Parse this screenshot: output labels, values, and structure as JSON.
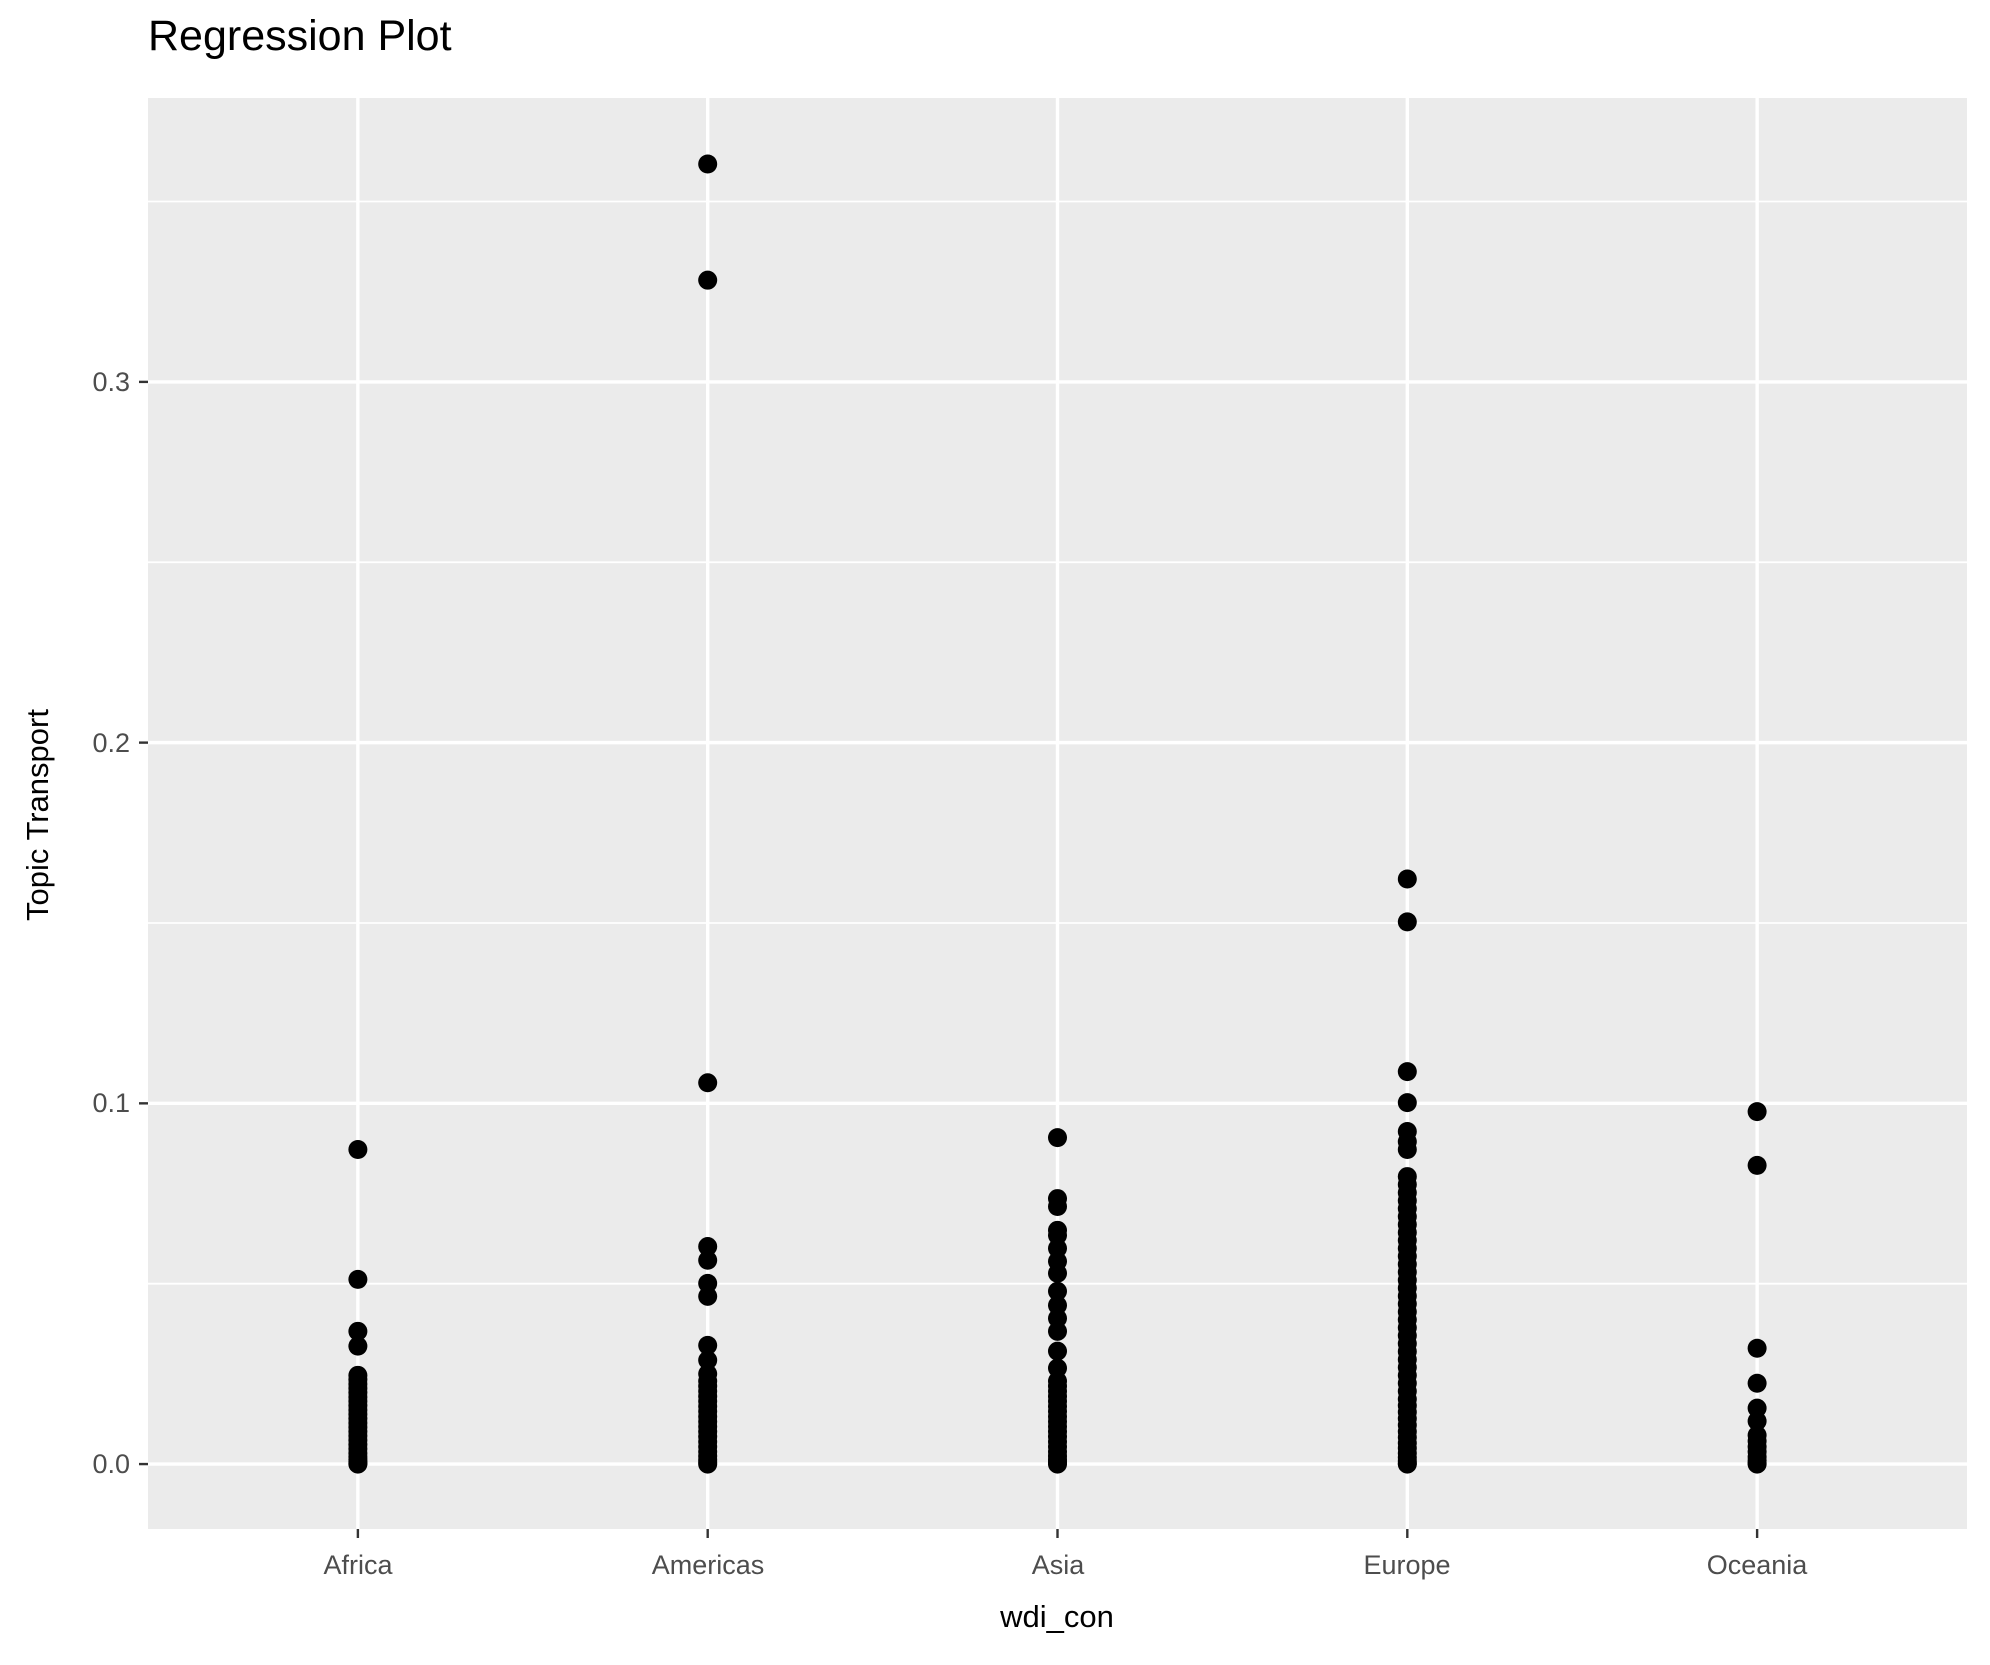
{
  "chart_data": {
    "type": "scatter",
    "title": "Regression Plot",
    "xlabel": "wdi_con",
    "ylabel": "Topic Transport",
    "categories": [
      "Africa",
      "Americas",
      "Asia",
      "Europe",
      "Oceania"
    ],
    "y_ticks": [
      {
        "value": 0.0,
        "label": "0.0"
      },
      {
        "value": 0.1,
        "label": "0.1"
      },
      {
        "value": 0.2,
        "label": "0.2"
      },
      {
        "value": 0.3,
        "label": "0.3"
      }
    ],
    "y_minor_ticks": [
      0.05,
      0.15,
      0.25,
      0.35
    ],
    "ylim": [
      -0.018,
      0.3787
    ],
    "x_units_range": [
      0.4,
      5.6
    ],
    "grid": "horizontal major+minor white lines, vertical major white lines at categories",
    "legend": "none",
    "point_color": "#000000",
    "panel_background": "#EBEBEB",
    "grid_color": "#FFFFFF",
    "tick_mark_color": "#333333",
    "tick_label_color": "#4D4D4D",
    "series": [
      {
        "name": "Africa",
        "values": [
          0.0872,
          0.0512,
          0.0368,
          0.0327,
          0.0246,
          0.0234,
          0.0222,
          0.021,
          0.0198,
          0.0186,
          0.0174,
          0.0162,
          0.015,
          0.0138,
          0.0126,
          0.0114,
          0.0102,
          0.009,
          0.0078,
          0.0066,
          0.0054,
          0.0042,
          0.003,
          0.002,
          0.0012,
          0.0006,
          0.0002,
          0.0
        ]
      },
      {
        "name": "Americas",
        "values": [
          0.3604,
          0.3282,
          0.1057,
          0.0603,
          0.0565,
          0.0501,
          0.0465,
          0.0329,
          0.0288,
          0.025,
          0.023,
          0.0216,
          0.0202,
          0.0188,
          0.0174,
          0.016,
          0.0146,
          0.0132,
          0.0118,
          0.0104,
          0.009,
          0.0076,
          0.0062,
          0.0048,
          0.0034,
          0.0022,
          0.0012,
          0.0005,
          0.0
        ]
      },
      {
        "name": "Asia",
        "values": [
          0.0905,
          0.0736,
          0.0714,
          0.0648,
          0.0634,
          0.0598,
          0.0562,
          0.0529,
          0.0479,
          0.044,
          0.0404,
          0.0368,
          0.0313,
          0.0266,
          0.023,
          0.0216,
          0.0202,
          0.0188,
          0.0174,
          0.016,
          0.0146,
          0.0132,
          0.0118,
          0.0104,
          0.009,
          0.0076,
          0.0062,
          0.0048,
          0.0034,
          0.0022,
          0.0012,
          0.0005,
          0.0
        ]
      },
      {
        "name": "Europe",
        "values": [
          0.1622,
          0.1503,
          0.1088,
          0.1002,
          0.0922,
          0.0894,
          0.0872,
          0.0797,
          0.0775,
          0.0752,
          0.073,
          0.0708,
          0.0686,
          0.0664,
          0.0642,
          0.062,
          0.0598,
          0.0576,
          0.0554,
          0.0532,
          0.051,
          0.0488,
          0.0466,
          0.0444,
          0.0422,
          0.04,
          0.0378,
          0.0356,
          0.0334,
          0.0312,
          0.029,
          0.0268,
          0.0246,
          0.0224,
          0.0202,
          0.018,
          0.0162,
          0.0144,
          0.0126,
          0.0108,
          0.009,
          0.0074,
          0.0058,
          0.0044,
          0.003,
          0.0018,
          0.0008,
          0.0002,
          0.0
        ]
      },
      {
        "name": "Oceania",
        "values": [
          0.0977,
          0.0828,
          0.0321,
          0.0224,
          0.0155,
          0.0119,
          0.008,
          0.0064,
          0.0048,
          0.0034,
          0.002,
          0.001,
          0.0003,
          0.0
        ]
      }
    ]
  }
}
